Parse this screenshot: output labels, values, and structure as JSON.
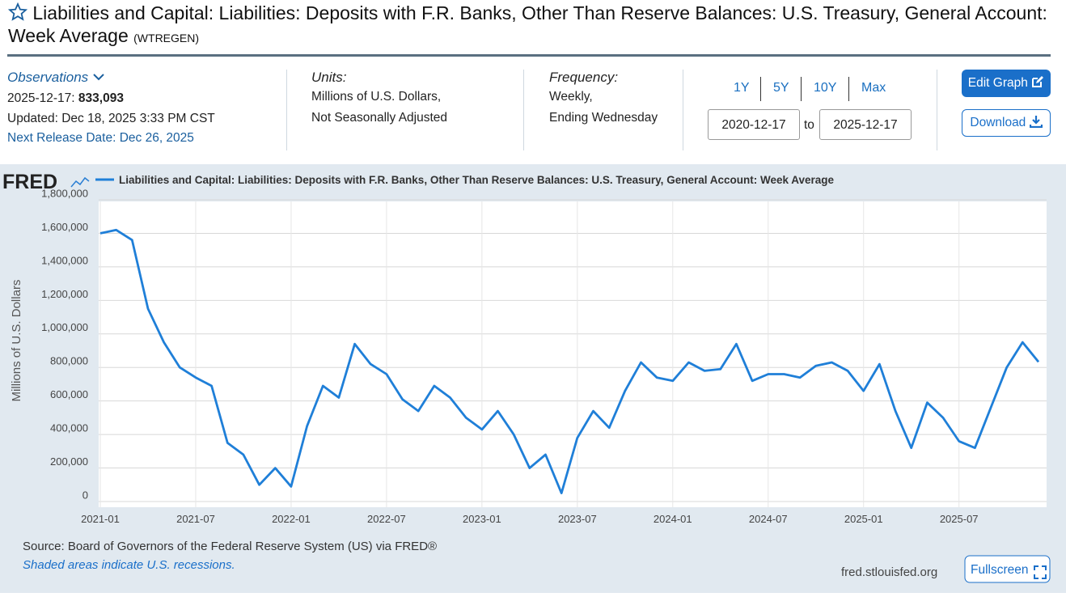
{
  "header": {
    "title": "Liabilities and Capital: Liabilities: Deposits with F.R. Banks, Other Than Reserve Balances: U.S. Treasury, General Account: Week Average",
    "series_id": "(WTREGEN)"
  },
  "info": {
    "observations_label": "Observations",
    "obs_date": "2025-12-17:",
    "obs_value": "833,093",
    "updated": "Updated: Dec 18, 2025 3:33 PM CST",
    "next_release": "Next Release Date: Dec 26, 2025",
    "units_label": "Units:",
    "units_line1": "Millions of U.S. Dollars,",
    "units_line2": "Not Seasonally Adjusted",
    "frequency_label": "Frequency:",
    "frequency_line1": "Weekly,",
    "frequency_line2": "Ending Wednesday",
    "ranges": [
      "1Y",
      "5Y",
      "10Y",
      "Max"
    ],
    "start_date": "2020-12-17",
    "to": "to",
    "end_date": "2025-12-17",
    "edit_graph": "Edit Graph",
    "download": "Download"
  },
  "footer": {
    "logo": "FRED",
    "source": "Source: Board of Governors of the Federal Reserve System (US) via FRED®",
    "recessions": "Shaded areas indicate U.S. recessions.",
    "site": "fred.stlouisfed.org",
    "fullscreen": "Fullscreen"
  },
  "chart_data": {
    "type": "line",
    "y_label": "Millions of U.S. Dollars",
    "x": [
      "2021-01",
      "2021-02",
      "2021-03",
      "2021-04",
      "2021-05",
      "2021-06",
      "2021-07",
      "2021-08",
      "2021-09",
      "2021-10",
      "2021-11",
      "2021-12",
      "2022-01",
      "2022-02",
      "2022-03",
      "2022-04",
      "2022-05",
      "2022-06",
      "2022-07",
      "2022-08",
      "2022-09",
      "2022-10",
      "2022-11",
      "2022-12",
      "2023-01",
      "2023-02",
      "2023-03",
      "2023-04",
      "2023-05",
      "2023-06",
      "2023-07",
      "2023-08",
      "2023-09",
      "2023-10",
      "2023-11",
      "2023-12",
      "2024-01",
      "2024-02",
      "2024-03",
      "2024-04",
      "2024-05",
      "2024-06",
      "2024-07",
      "2024-08",
      "2024-09",
      "2024-10",
      "2024-11",
      "2024-12",
      "2025-01",
      "2025-02",
      "2025-03",
      "2025-04",
      "2025-05",
      "2025-06",
      "2025-07",
      "2025-08",
      "2025-09",
      "2025-10",
      "2025-11",
      "2025-12"
    ],
    "series": [
      {
        "name": "Liabilities and Capital: Liabilities: Deposits with F.R. Banks, Other Than Reserve Balances: U.S. Treasury, General Account: Week Average",
        "color": "#1f7fd8",
        "values": [
          1600000,
          1620000,
          1560000,
          1150000,
          950000,
          800000,
          740000,
          690000,
          350000,
          280000,
          100000,
          200000,
          90000,
          450000,
          690000,
          620000,
          940000,
          820000,
          760000,
          610000,
          540000,
          690000,
          620000,
          500000,
          430000,
          540000,
          400000,
          200000,
          280000,
          50000,
          380000,
          540000,
          440000,
          660000,
          830000,
          740000,
          720000,
          830000,
          780000,
          790000,
          940000,
          720000,
          760000,
          760000,
          740000,
          810000,
          830000,
          780000,
          660000,
          820000,
          540000,
          320000,
          590000,
          500000,
          360000,
          320000,
          560000,
          800000,
          950000,
          833093
        ]
      }
    ],
    "xlim": [
      "2021-01",
      "2025-12"
    ],
    "xticks": [
      "2021-01",
      "2021-07",
      "2022-01",
      "2022-07",
      "2023-01",
      "2023-07",
      "2024-01",
      "2024-07",
      "2025-01",
      "2025-07"
    ],
    "ylim": [
      0,
      1800000
    ],
    "yticks": [
      0,
      {
        "value": 200000,
        "label": "200,000"
      },
      {
        "value": 400000,
        "label": "400,000"
      },
      {
        "value": 600000,
        "label": "600,000"
      },
      {
        "value": 800000,
        "label": "800,000"
      },
      {
        "value": 1000000,
        "label": "1,000,000"
      },
      {
        "value": 1200000,
        "label": "1,200,000"
      },
      {
        "value": 1400000,
        "label": "1,400,000"
      },
      {
        "value": 1600000,
        "label": "1,600,000"
      },
      {
        "value": 1800000,
        "label": "1,800,000"
      }
    ],
    "grid": true
  }
}
